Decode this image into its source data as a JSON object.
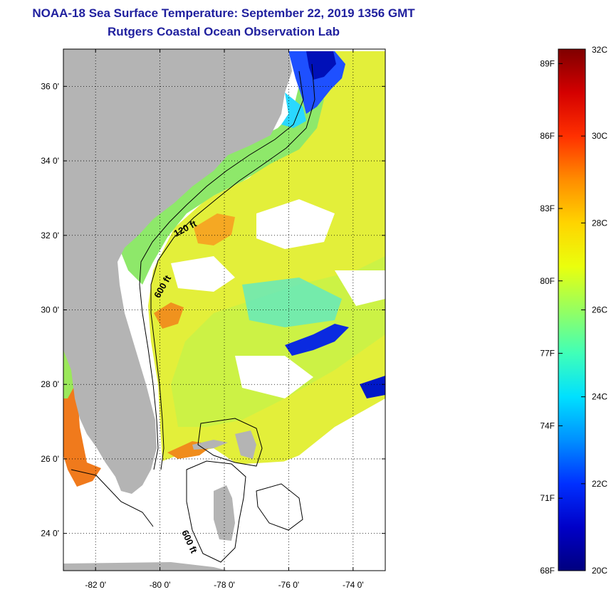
{
  "header": {
    "title": "NOAA-18 Sea Surface Temperature:  September 22, 2019 1356 GMT",
    "subtitle": "Rutgers Coastal Ocean Observation Lab"
  },
  "chart_data": {
    "type": "heatmap",
    "title": "NOAA-18 Sea Surface Temperature:  September 22, 2019 1356 GMT",
    "subtitle": "Rutgers Coastal Ocean Observation Lab",
    "xlabel": "",
    "ylabel": "",
    "xlim": [
      -83,
      -73
    ],
    "ylim": [
      23,
      37
    ],
    "x_ticks": [
      -82,
      -80,
      -78,
      -76,
      -74
    ],
    "x_tick_labels": [
      "-82 0'",
      "-80 0'",
      "-78 0'",
      "-76 0'",
      "-74 0'"
    ],
    "y_ticks": [
      24,
      26,
      28,
      30,
      32,
      34,
      36
    ],
    "y_tick_labels": [
      "24 0'",
      "26 0'",
      "28 0'",
      "30 0'",
      "32 0'",
      "34 0'",
      "36 0'"
    ],
    "grid": true,
    "contour_labels": [
      "120 ft",
      "600 ft",
      "600 ft"
    ],
    "colorbar": {
      "c_min": 20,
      "c_max": 32,
      "celsius_ticks": [
        32,
        30,
        28,
        26,
        24,
        22,
        20
      ],
      "celsius_labels": [
        "32C",
        "30C",
        "28C",
        "26C",
        "24C",
        "22C",
        "20C"
      ],
      "fahrenheit_ticks_c": [
        31.667,
        30,
        28.333,
        26.667,
        25,
        23.333,
        21.667,
        20
      ],
      "fahrenheit_labels": [
        "89F",
        "86F",
        "83F",
        "80F",
        "77F",
        "74F",
        "71F",
        "68F"
      ],
      "colors_top_to_bottom": [
        "#7f0000",
        "#d40000",
        "#ff3000",
        "#ff8c00",
        "#ffd400",
        "#eaff0d",
        "#96ff60",
        "#40ffb8",
        "#00e0ff",
        "#0090ff",
        "#0030ff",
        "#0000c8",
        "#00007f"
      ]
    },
    "colors": {
      "land": "#b4b4b4",
      "no_data": "#ffffff",
      "title_color": "#1f1f9e"
    }
  }
}
